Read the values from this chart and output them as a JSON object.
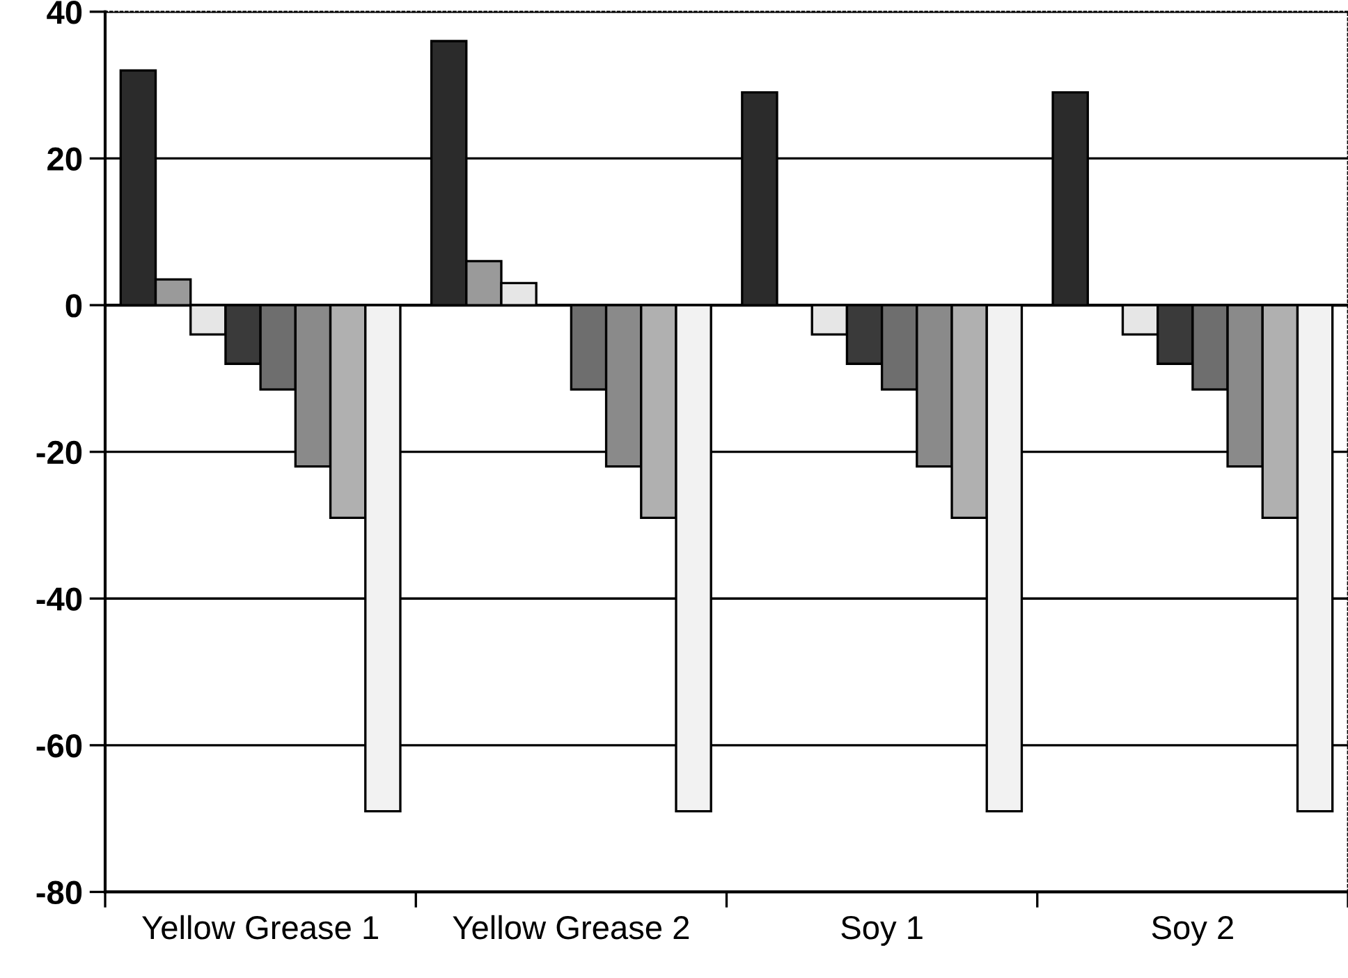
{
  "chart_data": {
    "type": "bar",
    "categories": [
      "Yellow Grease 1",
      "Yellow Grease 2",
      "Soy 1",
      "Soy 2"
    ],
    "series": [
      {
        "color": "#2b2b2b",
        "values": [
          32,
          36,
          29,
          29
        ]
      },
      {
        "color": "#9a9a9a",
        "values": [
          3.5,
          6,
          0,
          0
        ]
      },
      {
        "color": "#e6e6e6",
        "values": [
          -4,
          3,
          -4,
          -4
        ]
      },
      {
        "color": "#3a3a3a",
        "values": [
          -8,
          0,
          -8,
          -8
        ]
      },
      {
        "color": "#6e6e6e",
        "values": [
          -11.5,
          -11.5,
          -11.5,
          -11.5
        ]
      },
      {
        "color": "#8a8a8a",
        "values": [
          -22,
          -22,
          -22,
          -22
        ]
      },
      {
        "color": "#b0b0b0",
        "values": [
          -29,
          -29,
          -29,
          -29
        ]
      },
      {
        "color": "#f2f2f2",
        "values": [
          -69,
          -69,
          -69,
          -69
        ]
      }
    ],
    "ylim": [
      -80,
      40
    ],
    "yticks": [
      -80,
      -60,
      -40,
      -20,
      0,
      20,
      40
    ],
    "grid": "y"
  }
}
